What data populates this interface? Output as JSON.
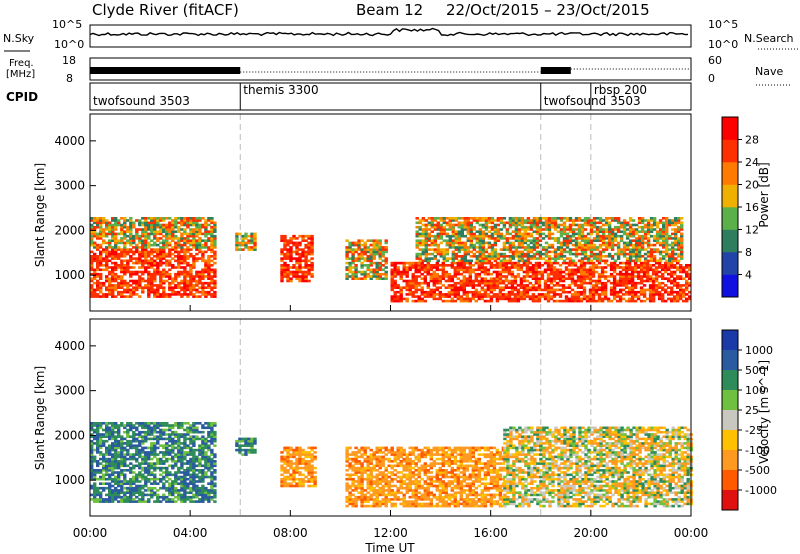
{
  "header": {
    "title": "Clyde River (fitACF)",
    "beam": "Beam 12",
    "date_range": "22/Oct/2015 – 23/Oct/2015"
  },
  "noise_panel": {
    "left_label": "N.Sky",
    "right_label": "N.Search",
    "left_ticks": [
      "10^5",
      "10^0"
    ],
    "right_ticks": [
      "10^5",
      "10^0"
    ]
  },
  "freq_panel": {
    "left_label": "Freq.",
    "left_unit": "[MHz]",
    "right_label": "Nave",
    "left_ticks": [
      "18",
      "8"
    ],
    "right_ticks": [
      "60",
      "0"
    ]
  },
  "cpid_panel": {
    "label": "CPID",
    "modes": [
      {
        "name": "twofsound 3503",
        "start_h": 0
      },
      {
        "name": "themis 3300",
        "start_h": 6
      },
      {
        "name": "twofsound 3503",
        "start_h": 18
      },
      {
        "name": "rbsp 200",
        "start_h": 20
      }
    ]
  },
  "x_axis": {
    "label": "Time UT",
    "ticks": [
      "00:00",
      "04:00",
      "08:00",
      "12:00",
      "16:00",
      "20:00",
      "00:00"
    ],
    "tick_hours": [
      0,
      4,
      8,
      12,
      16,
      20,
      24
    ],
    "range_h": [
      0,
      24
    ]
  },
  "colors": {
    "power_scale": [
      "#1010e0",
      "#2244a8",
      "#2e7d5e",
      "#5cb04a",
      "#f0b000",
      "#ff7a00",
      "#ff3000",
      "#ff0000"
    ],
    "velocity_scale": [
      "#e01010",
      "#ff5a00",
      "#ff9a20",
      "#ffc000",
      "#c8c8c0",
      "#70c040",
      "#2e8c5a",
      "#2a5aa0",
      "#1a3aa8"
    ]
  },
  "chart_data": [
    {
      "type": "heatmap",
      "panel": "power",
      "ylabel": "Slant Range [km]",
      "ylim": [
        200,
        4600
      ],
      "yticks": [
        1000,
        2000,
        3000,
        4000
      ],
      "colorbar": {
        "label": "Power [dB]",
        "ticks": [
          "4",
          "8",
          "12",
          "16",
          "20",
          "24",
          "28"
        ]
      },
      "x_range_h": [
        0,
        24
      ],
      "echo_regions": [
        {
          "t0": 0.0,
          "t1": 5.0,
          "r0": 500,
          "r1": 1600,
          "level": "high"
        },
        {
          "t0": 0.0,
          "t1": 5.0,
          "r0": 1600,
          "r1": 2300,
          "level": "medium"
        },
        {
          "t0": 5.8,
          "t1": 6.6,
          "r0": 1550,
          "r1": 1950,
          "level": "medium"
        },
        {
          "t0": 7.6,
          "t1": 8.8,
          "r0": 850,
          "r1": 1900,
          "level": "high"
        },
        {
          "t0": 10.2,
          "t1": 11.8,
          "r0": 900,
          "r1": 1800,
          "level": "medium"
        },
        {
          "t0": 12.0,
          "t1": 24.0,
          "r0": 400,
          "r1": 1300,
          "level": "high"
        },
        {
          "t0": 13.0,
          "t1": 23.6,
          "r0": 1300,
          "r1": 2300,
          "level": "medium"
        }
      ]
    },
    {
      "type": "heatmap",
      "panel": "velocity",
      "ylabel": "Slant Range [km]",
      "ylim": [
        200,
        4600
      ],
      "yticks": [
        1000,
        2000,
        3000,
        4000
      ],
      "colorbar": {
        "label": "Velocity [m s^-1]",
        "ticks": [
          "1000",
          "500",
          "100",
          "25",
          "-25",
          "-100",
          "-500",
          "-1000"
        ]
      },
      "x_range_h": [
        0,
        24
      ],
      "echo_regions": [
        {
          "t0": 0.0,
          "t1": 5.0,
          "r0": 500,
          "r1": 2300,
          "level": "positive"
        },
        {
          "t0": 5.8,
          "t1": 6.6,
          "r0": 1550,
          "r1": 1950,
          "level": "positive"
        },
        {
          "t0": 7.6,
          "t1": 9.0,
          "r0": 850,
          "r1": 1750,
          "level": "negative"
        },
        {
          "t0": 10.2,
          "t1": 16.5,
          "r0": 400,
          "r1": 1750,
          "level": "negative"
        },
        {
          "t0": 16.5,
          "t1": 24.0,
          "r0": 400,
          "r1": 2200,
          "level": "mixed"
        }
      ]
    }
  ]
}
